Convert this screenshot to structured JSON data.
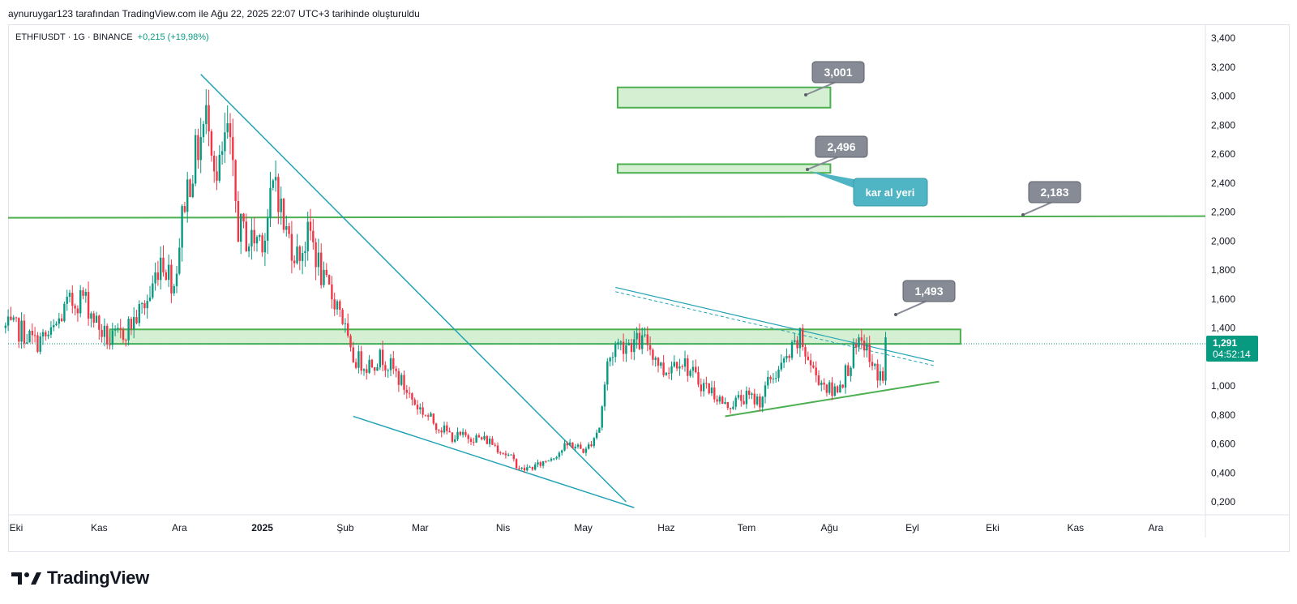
{
  "caption": "aynuruygar123 tarafından TradingView.com ile Ağu 22, 2025 22:07 UTC+3 tarihinde oluşturuldu",
  "symbol_line": {
    "symbol": "ETHFIUSDT · 1G · BINANCE",
    "change": "+0,215 (+19,98%)",
    "change_color": "#089981"
  },
  "brand": {
    "name": "TradingView",
    "logo_icon": "tradingview-logo-icon"
  },
  "colors": {
    "up": "#089981",
    "down": "#f23645",
    "trendline": "#22a3b5",
    "zone_fill": "#d4efd2",
    "zone_stroke": "#4caf50",
    "label_bg": "#868b96",
    "note_bg": "#4fb4c4"
  },
  "chart_data": {
    "type": "candlestick",
    "title": "ETHFIUSDT · 1G · BINANCE",
    "y_axis": {
      "ylim": [
        0.1,
        3.55
      ],
      "ticks": [
        "3,400",
        "3,200",
        "3,000",
        "2,800",
        "2,600",
        "2,400",
        "2,200",
        "2,000",
        "1,800",
        "1,600",
        "1,400",
        "1,200",
        "1,000",
        "0,800",
        "0,600",
        "0,400",
        "0,200"
      ]
    },
    "x_axis": {
      "ticks": [
        "Eki",
        "Kas",
        "Ara",
        "2025",
        "Şub",
        "Mar",
        "Nis",
        "May",
        "Haz",
        "Tem",
        "Ağu",
        "Eyl",
        "Eki",
        "Kas",
        "Ara"
      ]
    },
    "current_price": {
      "value": "1,291",
      "countdown": "04:52:14"
    },
    "series": [
      {
        "name": "ETHFIUSDT",
        "anchors": [
          [
            "2024-09-27",
            1.4
          ],
          [
            "2024-10-03",
            1.38
          ],
          [
            "2024-10-08",
            1.3
          ],
          [
            "2024-10-14",
            1.35
          ],
          [
            "2024-10-20",
            1.55
          ],
          [
            "2024-10-26",
            1.62
          ],
          [
            "2024-11-01",
            1.4
          ],
          [
            "2024-11-05",
            1.3
          ],
          [
            "2024-11-09",
            1.35
          ],
          [
            "2024-11-14",
            1.45
          ],
          [
            "2024-11-20",
            1.62
          ],
          [
            "2024-11-24",
            1.9
          ],
          [
            "2024-11-29",
            1.7
          ],
          [
            "2024-12-03",
            2.3
          ],
          [
            "2024-12-08",
            2.65
          ],
          [
            "2024-12-12",
            2.9
          ],
          [
            "2024-12-15",
            2.4
          ],
          [
            "2024-12-19",
            2.75
          ],
          [
            "2024-12-23",
            2.1
          ],
          [
            "2024-12-27",
            2.0
          ],
          [
            "2025-01-02",
            2.05
          ],
          [
            "2025-01-06",
            2.45
          ],
          [
            "2025-01-09",
            2.1
          ],
          [
            "2025-01-14",
            1.9
          ],
          [
            "2025-01-19",
            2.05
          ],
          [
            "2025-01-24",
            1.7
          ],
          [
            "2025-01-30",
            1.55
          ],
          [
            "2025-02-03",
            1.2
          ],
          [
            "2025-02-09",
            1.15
          ],
          [
            "2025-02-15",
            1.2
          ],
          [
            "2025-02-20",
            1.08
          ],
          [
            "2025-02-27",
            0.88
          ],
          [
            "2025-03-06",
            0.75
          ],
          [
            "2025-03-13",
            0.65
          ],
          [
            "2025-03-20",
            0.65
          ],
          [
            "2025-03-27",
            0.62
          ],
          [
            "2025-04-04",
            0.5
          ],
          [
            "2025-04-08",
            0.42
          ],
          [
            "2025-04-14",
            0.45
          ],
          [
            "2025-04-20",
            0.52
          ],
          [
            "2025-04-26",
            0.6
          ],
          [
            "2025-05-02",
            0.55
          ],
          [
            "2025-05-07",
            0.72
          ],
          [
            "2025-05-10",
            1.15
          ],
          [
            "2025-05-13",
            1.28
          ],
          [
            "2025-05-18",
            1.3
          ],
          [
            "2025-05-25",
            1.3
          ],
          [
            "2025-05-31",
            1.1
          ],
          [
            "2025-06-06",
            1.2
          ],
          [
            "2025-06-12",
            1.05
          ],
          [
            "2025-06-19",
            0.95
          ],
          [
            "2025-06-23",
            0.86
          ],
          [
            "2025-06-30",
            0.92
          ],
          [
            "2025-07-06",
            0.9
          ],
          [
            "2025-07-10",
            1.05
          ],
          [
            "2025-07-15",
            1.15
          ],
          [
            "2025-07-21",
            1.32
          ],
          [
            "2025-07-26",
            1.1
          ],
          [
            "2025-08-02",
            0.95
          ],
          [
            "2025-08-06",
            1.05
          ],
          [
            "2025-08-10",
            1.22
          ],
          [
            "2025-08-14",
            1.3
          ],
          [
            "2025-08-17",
            1.12
          ],
          [
            "2025-08-21",
            1.06
          ],
          [
            "2025-08-22",
            1.291
          ]
        ]
      }
    ],
    "annotations": {
      "price_labels": [
        "3,001",
        "2,496",
        "2,183",
        "1,493"
      ],
      "note": "kar al yeri",
      "horizontal_line": 2.16,
      "zones": [
        {
          "from": "2025-06-01",
          "to": "2025-08-15",
          "price": [
            2.92,
            3.06
          ]
        },
        {
          "from": "2025-06-01",
          "to": "2025-08-15",
          "price": [
            2.47,
            2.53
          ]
        },
        {
          "from": "2024-11-05",
          "to": "2025-09-19",
          "price": [
            1.29,
            1.39
          ]
        }
      ]
    }
  }
}
